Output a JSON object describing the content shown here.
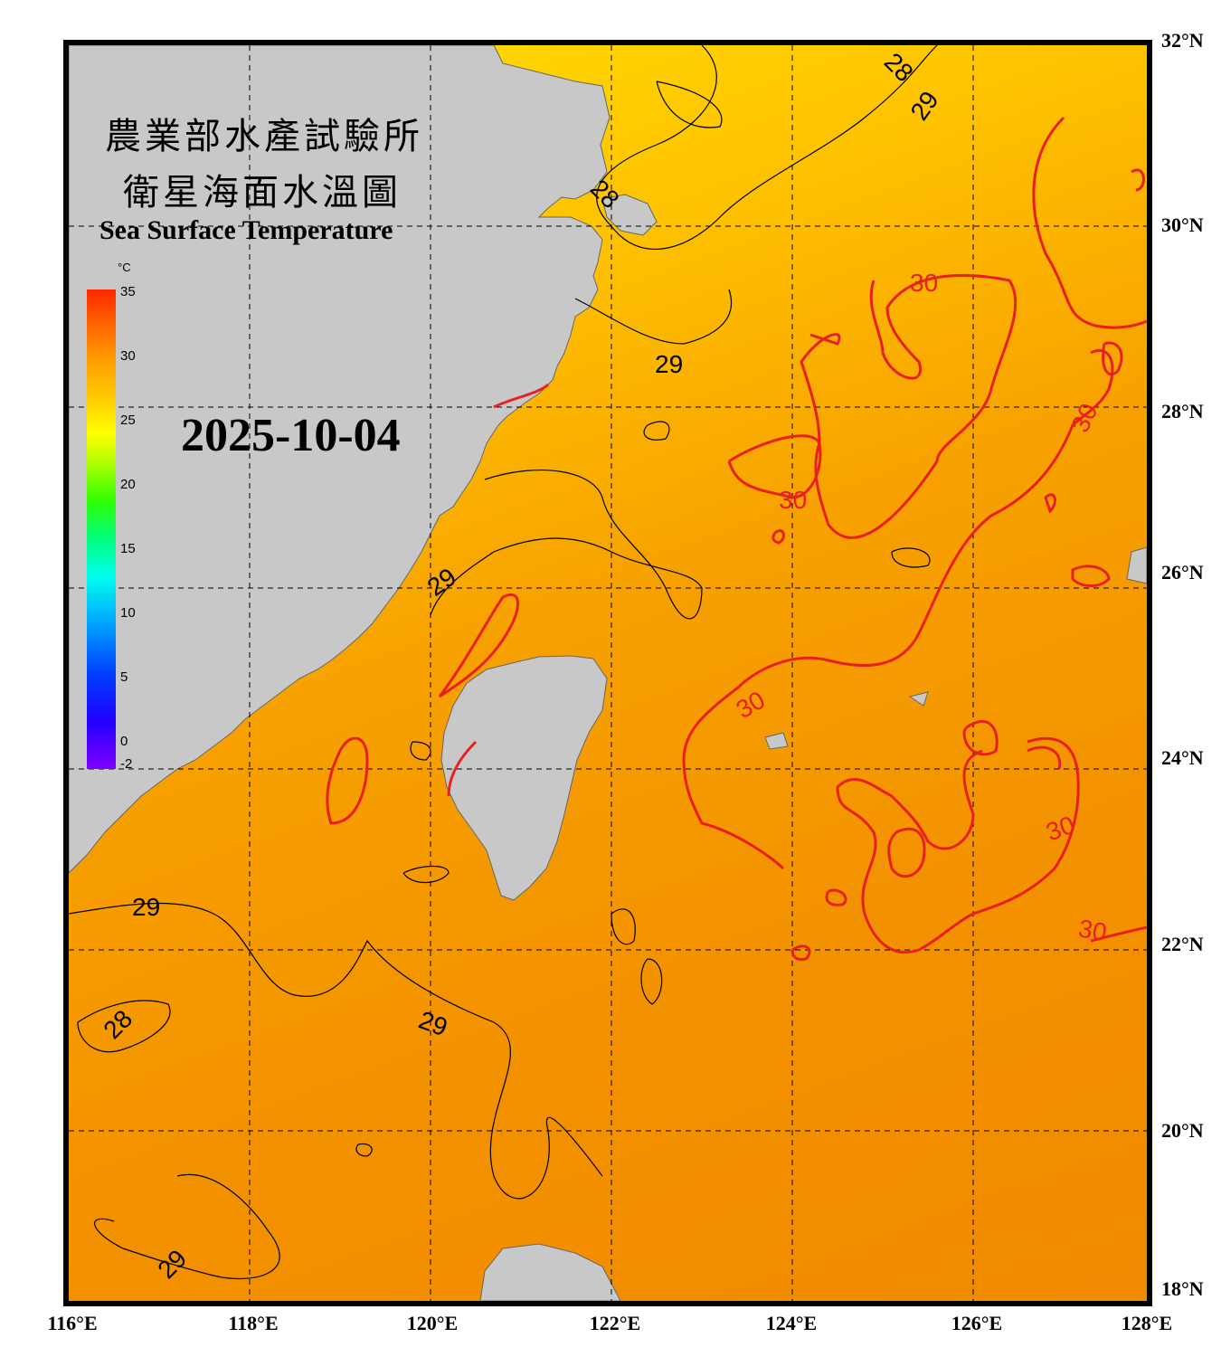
{
  "title": {
    "zh_line1": "農業部水產試驗所",
    "zh_line2": "衛星海面水溫圖",
    "en": "Sea Surface Temperature"
  },
  "date": "2025-10-04",
  "colorbar": {
    "unit": "°C",
    "ticks": [
      "35",
      "30",
      "25",
      "20",
      "15",
      "10",
      "5",
      "0",
      "-2"
    ]
  },
  "axes": {
    "lat_labels": [
      "32°N",
      "30°N",
      "28°N",
      "26°N",
      "24°N",
      "22°N",
      "20°N",
      "18°N"
    ],
    "lon_labels": [
      "116°E",
      "118°E",
      "120°E",
      "122°E",
      "124°E",
      "126°E",
      "128°E"
    ]
  },
  "contour_labels": {
    "values": [
      "28",
      "29",
      "29",
      "29",
      "29",
      "29",
      "29",
      "30",
      "30",
      "30",
      "30",
      "30",
      "30",
      "28",
      "28"
    ]
  },
  "colors": {
    "land": "#c8c8c8",
    "contour_30": "#e82020",
    "contour_other": "#000000",
    "grid": "#000000"
  }
}
